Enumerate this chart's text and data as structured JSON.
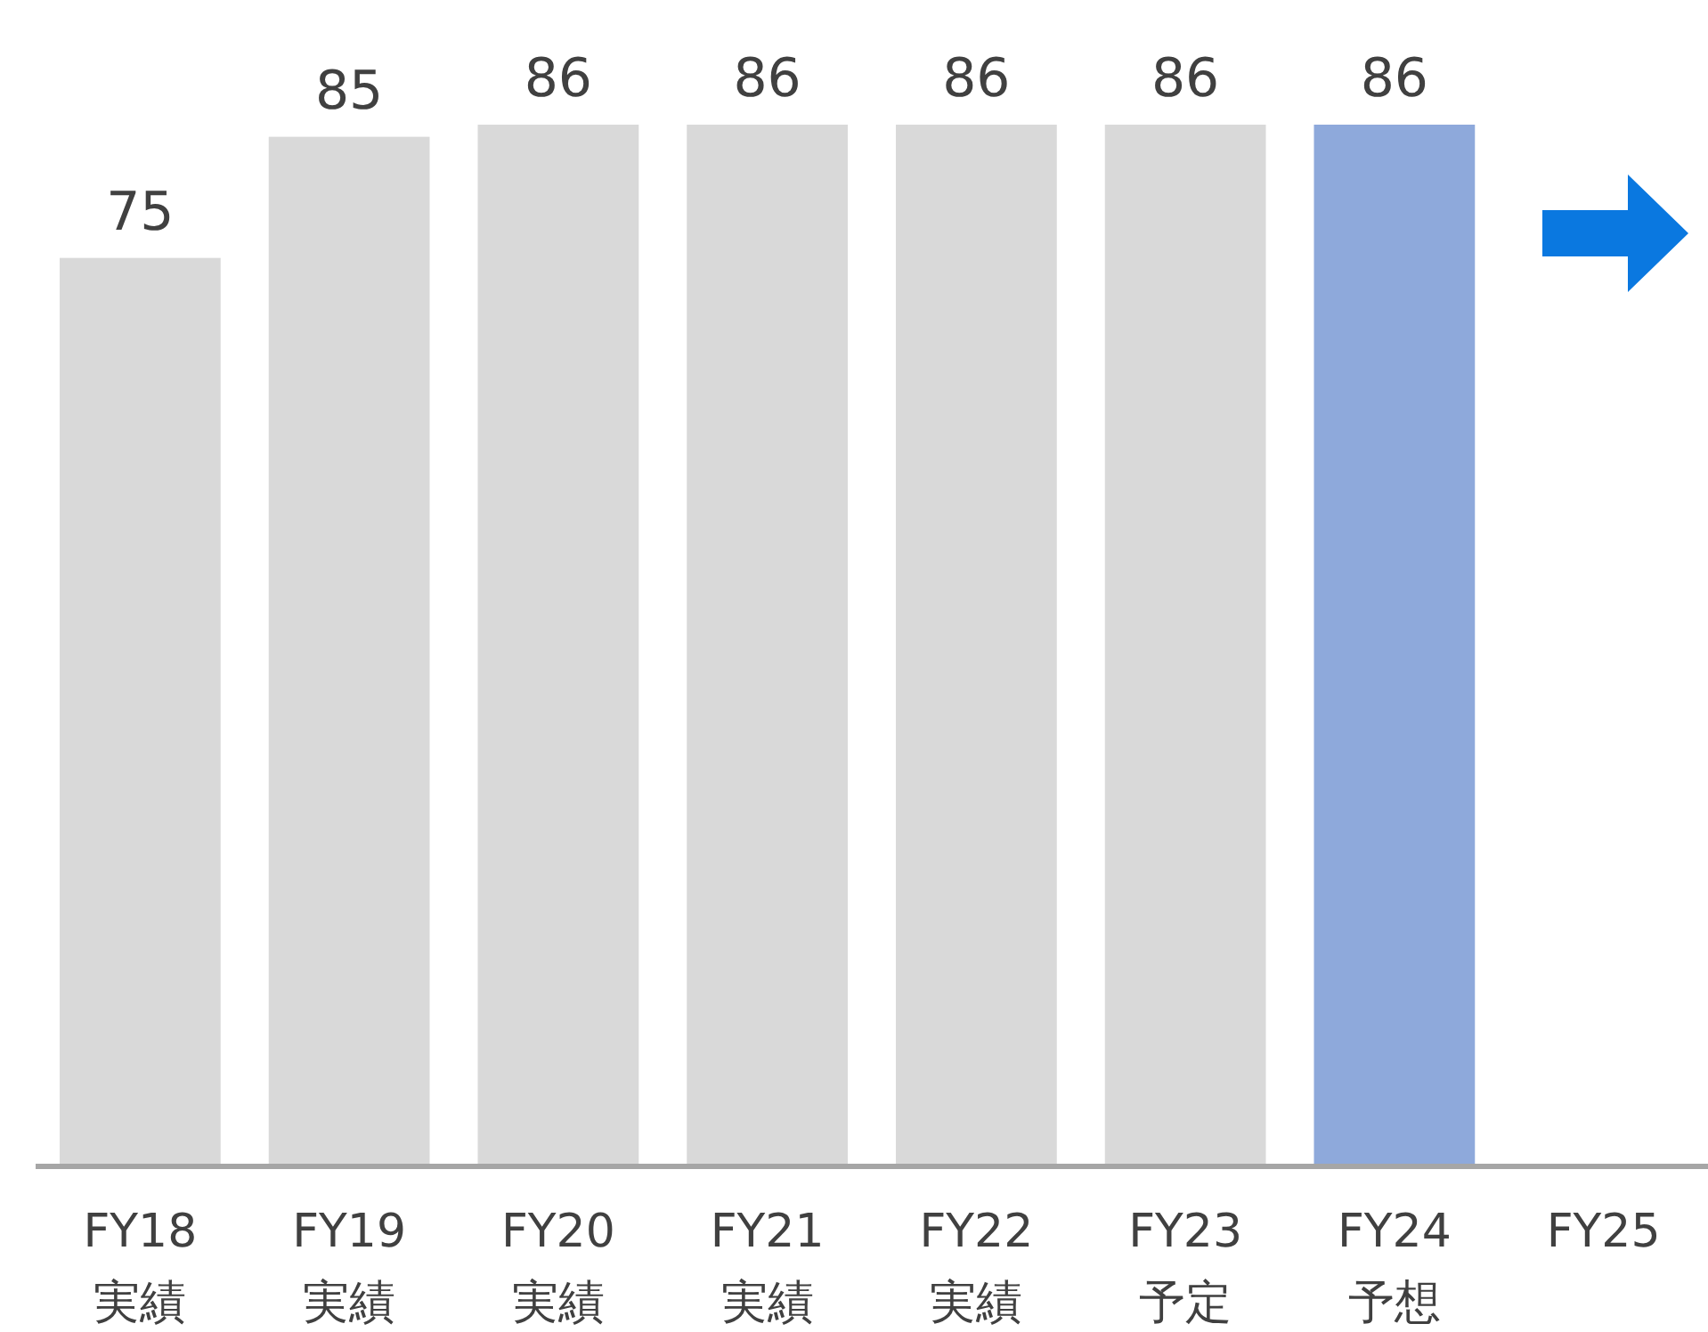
{
  "chart_data": {
    "type": "bar",
    "categories": [
      "FY18\n実績",
      "FY19\n実績",
      "FY20\n実績",
      "FY21\n実績",
      "FY22\n実績",
      "FY23\n予定",
      "FY24\n予想",
      "FY25"
    ],
    "values": [
      75,
      85,
      86,
      86,
      86,
      86,
      86,
      null
    ],
    "colors": [
      "#d9d9d9",
      "#d9d9d9",
      "#d9d9d9",
      "#d9d9d9",
      "#d9d9d9",
      "#d9d9d9",
      "#8ea9db",
      null
    ],
    "data_labels": true
  }
}
